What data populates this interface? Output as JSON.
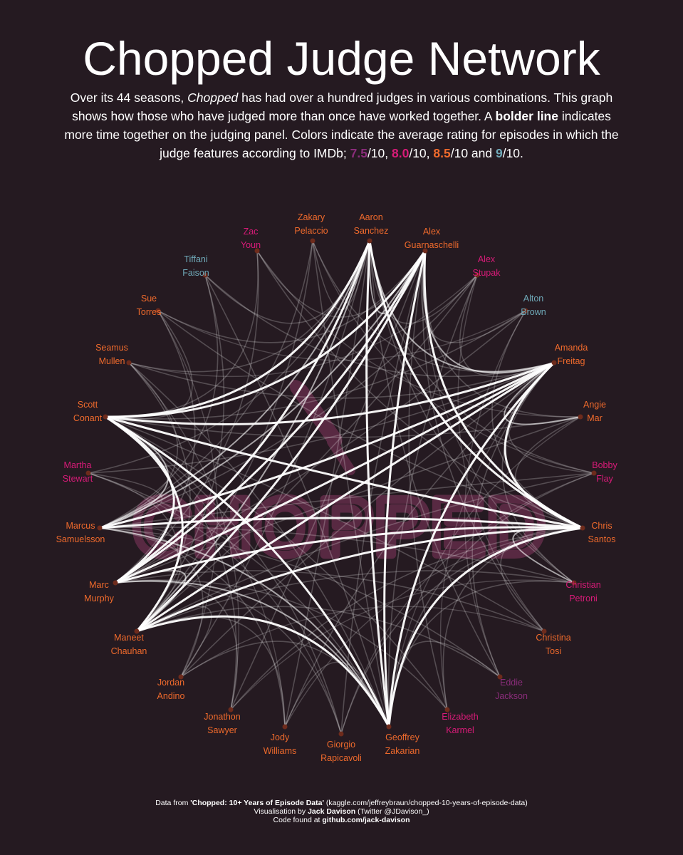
{
  "title": "Chopped Judge Network",
  "subtitle": {
    "p1": "Over its 44 seasons, ",
    "show": "Chopped",
    "p2": " has had over a hundred judges in various combinations. This graph shows how those who have judged more than once have worked together. A ",
    "bold": "bolder line",
    "p3": " indicates more time together on the judging panel. Colors indicate the average rating for episodes in which the judge features according to IMDb; ",
    "r1": "7.5",
    "s1": "/10, ",
    "r2": "8.0",
    "s2": "/10, ",
    "r3": "8.5",
    "s3": "/10 and ",
    "r4": "9",
    "s4": "/10."
  },
  "rating_colors": {
    "7.5": "#8a2c7a",
    "8.0": "#d81b78",
    "8.5": "#ef6a2c",
    "9": "#6fa9b8"
  },
  "watermark": "CHOPPED",
  "judges": [
    {
      "id": "aaron",
      "lines": [
        "Aaron",
        "Sanchez"
      ],
      "rating": "8.5"
    },
    {
      "id": "alex-g",
      "lines": [
        "Alex",
        "Guarnaschelli"
      ],
      "rating": "8.5"
    },
    {
      "id": "alex-s",
      "lines": [
        "Alex",
        "Stupak"
      ],
      "rating": "8.0"
    },
    {
      "id": "alton",
      "lines": [
        "Alton",
        "Brown"
      ],
      "rating": "9"
    },
    {
      "id": "amanda",
      "lines": [
        "Amanda",
        "Freitag"
      ],
      "rating": "8.5"
    },
    {
      "id": "angie",
      "lines": [
        "Angie",
        "Mar"
      ],
      "rating": "8.5"
    },
    {
      "id": "bobby",
      "lines": [
        "Bobby",
        "Flay"
      ],
      "rating": "8.0"
    },
    {
      "id": "chris",
      "lines": [
        "Chris",
        "Santos"
      ],
      "rating": "8.5"
    },
    {
      "id": "christian",
      "lines": [
        "Christian",
        "Petroni"
      ],
      "rating": "8.0"
    },
    {
      "id": "christina",
      "lines": [
        "Christina",
        "Tosi"
      ],
      "rating": "8.5"
    },
    {
      "id": "eddie",
      "lines": [
        "Eddie",
        "Jackson"
      ],
      "rating": "7.5"
    },
    {
      "id": "elizabeth",
      "lines": [
        "Elizabeth",
        "Karmel"
      ],
      "rating": "8.0"
    },
    {
      "id": "geoffrey",
      "lines": [
        "Geoffrey",
        "Zakarian"
      ],
      "rating": "8.5"
    },
    {
      "id": "giorgio",
      "lines": [
        "Giorgio",
        "Rapicavoli"
      ],
      "rating": "8.5"
    },
    {
      "id": "jody",
      "lines": [
        "Jody",
        "Williams"
      ],
      "rating": "8.5"
    },
    {
      "id": "jonathon",
      "lines": [
        "Jonathon",
        "Sawyer"
      ],
      "rating": "8.5"
    },
    {
      "id": "jordan",
      "lines": [
        "Jordan",
        "Andino"
      ],
      "rating": "8.5"
    },
    {
      "id": "maneet",
      "lines": [
        "Maneet",
        "Chauhan"
      ],
      "rating": "8.5"
    },
    {
      "id": "marc",
      "lines": [
        "Marc",
        "Murphy"
      ],
      "rating": "8.5"
    },
    {
      "id": "marcus",
      "lines": [
        "Marcus",
        "Samuelsson"
      ],
      "rating": "8.5"
    },
    {
      "id": "martha",
      "lines": [
        "Martha",
        "Stewart"
      ],
      "rating": "8.0"
    },
    {
      "id": "scott",
      "lines": [
        "Scott",
        "Conant"
      ],
      "rating": "8.5"
    },
    {
      "id": "seamus",
      "lines": [
        "Seamus",
        "Mullen"
      ],
      "rating": "8.5"
    },
    {
      "id": "sue",
      "lines": [
        "Sue",
        "Torres"
      ],
      "rating": "8.5"
    },
    {
      "id": "tiffani",
      "lines": [
        "Tiffani",
        "Faison"
      ],
      "rating": "9"
    },
    {
      "id": "zac",
      "lines": [
        "Zac",
        "Youn"
      ],
      "rating": "8.0"
    },
    {
      "id": "zakary",
      "lines": [
        "Zakary",
        "Pelaccio"
      ],
      "rating": "8.5"
    }
  ],
  "footer": {
    "l1a": "Data from ",
    "l1b": "'Chopped: 10+ Years of Episode Data'",
    "l1c": " (kaggle.com/jeffreybraun/chopped-10-years-of-episode-data)",
    "l2a": "Visualisation by ",
    "l2b": "Jack Davison",
    "l2c": " (Twitter @JDavison_)",
    "l3a": "Code found at ",
    "l3b": "github.com/jack-davison"
  }
}
